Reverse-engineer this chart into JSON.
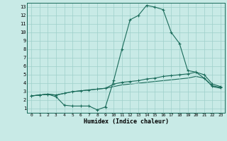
{
  "title": "",
  "xlabel": "Humidex (Indice chaleur)",
  "background_color": "#c8eae6",
  "line_color": "#1a6b5a",
  "xlim": [
    -0.5,
    23.5
  ],
  "ylim": [
    0.5,
    13.5
  ],
  "xticks": [
    0,
    1,
    2,
    3,
    4,
    5,
    6,
    7,
    8,
    9,
    10,
    11,
    12,
    13,
    14,
    15,
    16,
    17,
    18,
    19,
    20,
    21,
    22,
    23
  ],
  "yticks": [
    1,
    2,
    3,
    4,
    5,
    6,
    7,
    8,
    9,
    10,
    11,
    12,
    13
  ],
  "x": [
    0,
    1,
    2,
    3,
    4,
    5,
    6,
    7,
    8,
    9,
    10,
    11,
    12,
    13,
    14,
    15,
    16,
    17,
    18,
    19,
    20,
    21,
    22,
    23
  ],
  "curve1": [
    2.5,
    2.6,
    2.7,
    2.4,
    1.4,
    1.3,
    1.3,
    1.3,
    0.85,
    1.2,
    4.3,
    8.0,
    11.5,
    12.0,
    13.2,
    13.0,
    12.7,
    10.0,
    8.7,
    5.5,
    5.3,
    4.6,
    3.7,
    3.5
  ],
  "curve2": [
    2.5,
    2.6,
    2.7,
    2.6,
    2.8,
    3.0,
    3.1,
    3.2,
    3.3,
    3.4,
    3.9,
    4.1,
    4.2,
    4.3,
    4.5,
    4.6,
    4.8,
    4.9,
    5.0,
    5.1,
    5.3,
    5.0,
    3.9,
    3.6
  ],
  "curve3": [
    2.5,
    2.6,
    2.7,
    2.6,
    2.8,
    3.0,
    3.1,
    3.2,
    3.3,
    3.4,
    3.6,
    3.8,
    3.9,
    4.0,
    4.1,
    4.2,
    4.3,
    4.4,
    4.5,
    4.6,
    4.8,
    4.6,
    3.6,
    3.4
  ]
}
